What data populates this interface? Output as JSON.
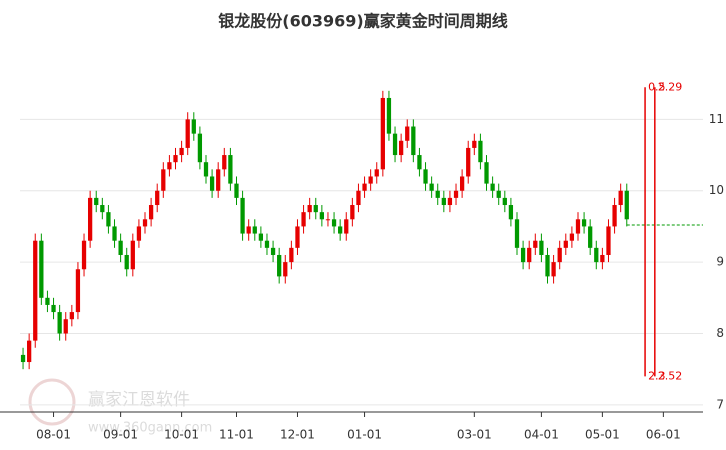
{
  "chart_data": {
    "type": "candlestick",
    "title": "银龙股份(603969)赢家黄金时间周期线",
    "categories": [
      null,
      null,
      null,
      null,
      null,
      "08-01",
      null,
      null,
      null,
      null,
      null,
      null,
      null,
      null,
      null,
      null,
      "09-01",
      null,
      null,
      null,
      null,
      null,
      null,
      null,
      null,
      null,
      "10-01",
      null,
      null,
      null,
      null,
      null,
      null,
      null,
      null,
      "11-01",
      null,
      null,
      null,
      null,
      null,
      null,
      null,
      null,
      null,
      "12-01",
      null,
      null,
      null,
      null,
      null,
      null,
      null,
      null,
      null,
      null,
      "01-01",
      null,
      null,
      null,
      null,
      null,
      null,
      null,
      null,
      null,
      null,
      null,
      null,
      null,
      null,
      null,
      null,
      null,
      "03-01",
      null,
      null,
      null,
      null,
      null,
      null,
      null,
      null,
      null,
      null,
      "04-01",
      null,
      null,
      null,
      null,
      null,
      null,
      null,
      null,
      null,
      "05-01",
      null,
      null,
      null,
      null,
      null,
      null,
      null,
      null,
      null,
      "06-01",
      null,
      null,
      null,
      null,
      null,
      null
    ],
    "open": [
      7.7,
      7.6,
      7.9,
      9.3,
      8.5,
      8.4,
      8.3,
      8.0,
      8.2,
      8.3,
      8.9,
      9.3,
      9.9,
      9.8,
      9.7,
      9.5,
      9.3,
      9.1,
      8.9,
      9.3,
      9.5,
      9.6,
      9.8,
      10.0,
      10.3,
      10.4,
      10.5,
      10.6,
      11.0,
      10.8,
      10.4,
      10.2,
      10.0,
      10.3,
      10.5,
      10.1,
      9.9,
      9.4,
      9.5,
      9.4,
      9.3,
      9.2,
      9.1,
      8.8,
      9.0,
      9.2,
      9.5,
      9.7,
      9.8,
      9.7,
      9.6,
      9.6,
      9.5,
      9.4,
      9.6,
      9.8,
      10.0,
      10.1,
      10.2,
      10.3,
      11.3,
      10.8,
      10.5,
      10.7,
      10.9,
      10.5,
      10.3,
      10.1,
      10.0,
      9.9,
      9.8,
      9.9,
      10.0,
      10.2,
      10.6,
      10.7,
      10.4,
      10.1,
      10.0,
      9.9,
      9.8,
      9.6,
      9.2,
      9.0,
      9.2,
      9.3,
      9.1,
      8.8,
      9.0,
      9.2,
      9.3,
      9.4,
      9.6,
      9.5,
      9.2,
      9.0,
      9.1,
      9.5,
      9.8,
      10.0,
      null,
      null,
      null,
      null,
      null,
      null,
      null,
      null,
      null,
      null,
      null,
      null
    ],
    "high": [
      7.8,
      8.0,
      9.4,
      9.4,
      8.6,
      8.5,
      8.4,
      8.3,
      8.4,
      9.0,
      9.4,
      10.0,
      10.0,
      9.9,
      9.8,
      9.6,
      9.4,
      9.2,
      9.4,
      9.6,
      9.7,
      9.9,
      10.1,
      10.4,
      10.5,
      10.6,
      10.7,
      11.1,
      11.1,
      10.9,
      10.5,
      10.3,
      10.4,
      10.6,
      10.6,
      10.2,
      10.0,
      9.6,
      9.6,
      9.5,
      9.4,
      9.3,
      9.2,
      9.1,
      9.3,
      9.6,
      9.8,
      9.9,
      9.9,
      9.8,
      9.7,
      9.7,
      9.6,
      9.7,
      9.9,
      10.1,
      10.2,
      10.3,
      10.4,
      11.4,
      11.4,
      10.9,
      10.8,
      11.0,
      11.0,
      10.6,
      10.4,
      10.2,
      10.1,
      10.0,
      10.0,
      10.1,
      10.3,
      10.7,
      10.8,
      10.8,
      10.5,
      10.2,
      10.1,
      10.0,
      9.9,
      9.7,
      9.3,
      9.3,
      9.4,
      9.4,
      9.2,
      9.1,
      9.3,
      9.4,
      9.5,
      9.7,
      9.7,
      9.6,
      9.3,
      9.2,
      9.6,
      9.9,
      10.1,
      10.1,
      null,
      null,
      null,
      null,
      null,
      null,
      null,
      null,
      null,
      null,
      null,
      null
    ],
    "low": [
      7.5,
      7.5,
      7.8,
      8.4,
      8.3,
      8.2,
      7.9,
      7.9,
      8.1,
      8.2,
      8.8,
      9.2,
      9.7,
      9.6,
      9.4,
      9.2,
      9.0,
      8.8,
      8.8,
      9.2,
      9.4,
      9.5,
      9.7,
      9.9,
      10.2,
      10.3,
      10.4,
      10.5,
      10.7,
      10.3,
      10.1,
      9.9,
      9.9,
      10.2,
      10.0,
      9.8,
      9.3,
      9.3,
      9.3,
      9.2,
      9.1,
      9.0,
      8.7,
      8.7,
      8.9,
      9.1,
      9.4,
      9.6,
      9.6,
      9.5,
      9.5,
      9.4,
      9.3,
      9.3,
      9.5,
      9.7,
      9.9,
      10.0,
      10.1,
      10.2,
      10.7,
      10.4,
      10.4,
      10.6,
      10.4,
      10.2,
      10.0,
      9.9,
      9.8,
      9.7,
      9.7,
      9.8,
      9.9,
      10.1,
      10.5,
      10.3,
      10.0,
      9.9,
      9.8,
      9.7,
      9.5,
      9.1,
      8.9,
      8.9,
      9.1,
      9.0,
      8.7,
      8.7,
      8.9,
      9.1,
      9.2,
      9.3,
      9.4,
      9.1,
      8.9,
      8.9,
      9.0,
      9.4,
      9.7,
      9.5,
      null,
      null,
      null,
      null,
      null,
      null,
      null,
      null,
      null,
      null,
      null,
      null
    ],
    "close": [
      7.6,
      7.9,
      9.3,
      8.5,
      8.4,
      8.3,
      8.0,
      8.2,
      8.3,
      8.9,
      9.3,
      9.9,
      9.8,
      9.7,
      9.5,
      9.3,
      9.1,
      8.9,
      9.3,
      9.5,
      9.6,
      9.8,
      10.0,
      10.3,
      10.4,
      10.5,
      10.6,
      11.0,
      10.8,
      10.4,
      10.2,
      10.0,
      10.3,
      10.5,
      10.1,
      9.9,
      9.4,
      9.5,
      9.4,
      9.3,
      9.2,
      9.1,
      8.8,
      9.0,
      9.2,
      9.5,
      9.7,
      9.8,
      9.7,
      9.6,
      9.6,
      9.5,
      9.4,
      9.6,
      9.8,
      10.0,
      10.1,
      10.2,
      10.3,
      11.3,
      10.8,
      10.5,
      10.7,
      10.9,
      10.5,
      10.3,
      10.1,
      10.0,
      9.9,
      9.8,
      9.9,
      10.0,
      10.2,
      10.6,
      10.7,
      10.4,
      10.1,
      10.0,
      9.9,
      9.8,
      9.6,
      9.2,
      9.0,
      9.2,
      9.3,
      9.1,
      8.8,
      9.0,
      9.2,
      9.3,
      9.4,
      9.6,
      9.5,
      9.2,
      9.0,
      9.1,
      9.5,
      9.8,
      10.0,
      9.6,
      null,
      null,
      null,
      null,
      null,
      null,
      null,
      null,
      null,
      null,
      null,
      null
    ],
    "up_color": "#e60000",
    "down_color": "#009900",
    "ylim": [
      6.9,
      12.0
    ],
    "yticks": [
      7,
      8,
      9,
      10,
      11
    ],
    "grid": true,
    "reference_line": {
      "value": 9.52,
      "color": "#009900"
    },
    "cycle_lines": [
      {
        "at": 102,
        "top": 11.45,
        "bottom": 7.4,
        "top_label": "0.5",
        "bottom_label": "2.3",
        "color": "#e60000"
      },
      {
        "at": 103.6,
        "top": 11.45,
        "bottom": 7.4,
        "top_label": "2.29",
        "bottom_label": "2.52",
        "color": "#e60000"
      }
    ],
    "watermark": {
      "name": "赢家江恩软件",
      "url": "www.360gann.com"
    }
  }
}
